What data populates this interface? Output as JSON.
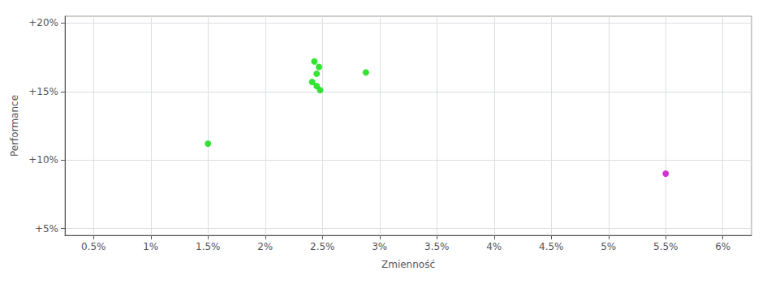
{
  "chart_data": {
    "type": "scatter",
    "xlabel": "Zmienność",
    "ylabel": "Performance",
    "xlim": [
      0.0025,
      0.0625
    ],
    "ylim": [
      0.045,
      0.205
    ],
    "xticks": [
      {
        "value": 0.005,
        "label": "0.5%"
      },
      {
        "value": 0.01,
        "label": "1%"
      },
      {
        "value": 0.015,
        "label": "1.5%"
      },
      {
        "value": 0.02,
        "label": "2%"
      },
      {
        "value": 0.025,
        "label": "2.5%"
      },
      {
        "value": 0.03,
        "label": "3%"
      },
      {
        "value": 0.035,
        "label": "3.5%"
      },
      {
        "value": 0.04,
        "label": "4%"
      },
      {
        "value": 0.045,
        "label": "4.5%"
      },
      {
        "value": 0.05,
        "label": "5%"
      },
      {
        "value": 0.055,
        "label": "5.5%"
      },
      {
        "value": 0.06,
        "label": "6%"
      }
    ],
    "yticks": [
      {
        "value": 0.05,
        "label": "+5%"
      },
      {
        "value": 0.1,
        "label": "+10%"
      },
      {
        "value": 0.15,
        "label": "+15%"
      },
      {
        "value": 0.2,
        "label": "+20%"
      }
    ],
    "grid": true,
    "series": [
      {
        "color": "#00dd00",
        "x": [
          0.0243,
          0.0247,
          0.0245,
          0.0241,
          0.0245,
          0.0248,
          0.0288,
          0.015
        ],
        "values": [
          0.172,
          0.168,
          0.163,
          0.157,
          0.154,
          0.151,
          0.164,
          0.112
        ]
      },
      {
        "color": "#cc00cc",
        "x": [
          0.055
        ],
        "values": [
          0.09
        ]
      }
    ]
  }
}
